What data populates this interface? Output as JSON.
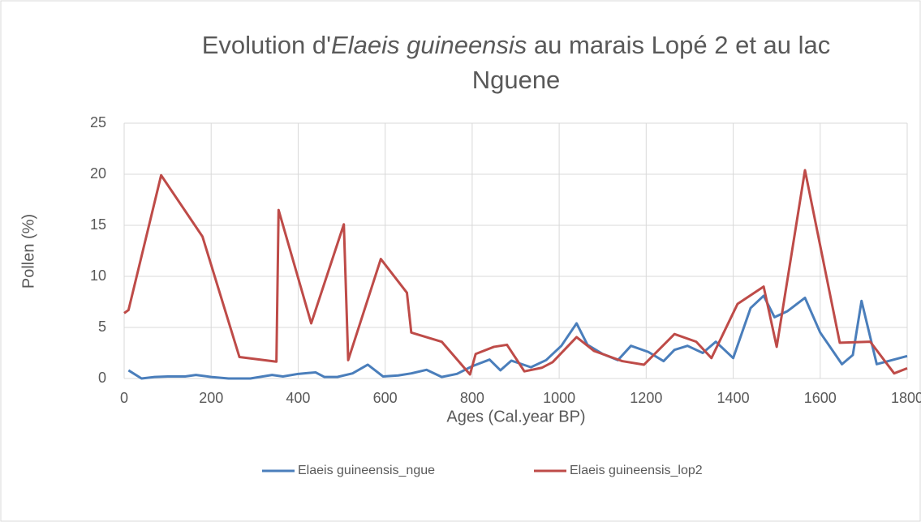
{
  "chart_data": {
    "type": "line",
    "title": [
      "Evolution d'",
      "Elaeis guineensis",
      " au marais Lopé 2 et au lac",
      "Nguene"
    ],
    "x_label": "Ages (Cal.year BP)",
    "y_label": "Pollen (%)",
    "xlim": [
      0,
      1800
    ],
    "xticks": [
      0,
      200,
      400,
      600,
      800,
      1000,
      1200,
      1400,
      1600,
      1800
    ],
    "ylim": [
      0,
      25
    ],
    "yticks": [
      0,
      5,
      10,
      15,
      20,
      25
    ],
    "grid": true,
    "legend": "bottom",
    "series": [
      {
        "name": "Elaeis guineensis_ngue",
        "color": "#4a7ebb",
        "x": [
          10,
          40,
          70,
          100,
          140,
          165,
          200,
          240,
          290,
          340,
          365,
          400,
          440,
          460,
          490,
          525,
          560,
          595,
          630,
          660,
          695,
          730,
          765,
          800,
          840,
          865,
          890,
          935,
          970,
          1005,
          1040,
          1065,
          1100,
          1135,
          1165,
          1205,
          1240,
          1265,
          1295,
          1330,
          1360,
          1400,
          1440,
          1470,
          1495,
          1525,
          1565,
          1600,
          1650,
          1675,
          1695,
          1730,
          1800
        ],
        "values": [
          0.8,
          0,
          0.15,
          0.2,
          0.2,
          0.35,
          0.15,
          0,
          0,
          0.35,
          0.2,
          0.45,
          0.6,
          0.15,
          0.15,
          0.5,
          1.35,
          0.2,
          0.3,
          0.5,
          0.85,
          0.15,
          0.45,
          1.2,
          1.85,
          0.8,
          1.75,
          1.1,
          1.8,
          3.2,
          5.4,
          3.3,
          2.4,
          1.8,
          3.2,
          2.6,
          1.7,
          2.8,
          3.2,
          2.5,
          3.6,
          2.0,
          6.9,
          8.1,
          6.0,
          6.6,
          7.9,
          4.5,
          1.4,
          2.3,
          7.6,
          1.4,
          2.2
        ]
      },
      {
        "name": "Elaeis guineensis_lop2",
        "color": "#be4b48",
        "x": [
          0,
          10,
          85,
          180,
          265,
          350,
          355,
          430,
          505,
          515,
          590,
          650,
          660,
          730,
          795,
          808,
          850,
          880,
          920,
          960,
          985,
          1040,
          1080,
          1145,
          1195,
          1265,
          1315,
          1350,
          1410,
          1470,
          1500,
          1565,
          1645,
          1715,
          1770,
          1800
        ],
        "values": [
          6.4,
          6.7,
          19.9,
          13.9,
          2.1,
          1.65,
          16.5,
          5.4,
          15.1,
          1.8,
          11.7,
          8.4,
          4.5,
          3.6,
          0.4,
          2.4,
          3.1,
          3.3,
          0.7,
          1.05,
          1.6,
          4.05,
          2.7,
          1.7,
          1.35,
          4.35,
          3.6,
          2.0,
          7.3,
          9.0,
          3.1,
          20.4,
          3.5,
          3.6,
          0.5,
          1.0
        ]
      }
    ]
  }
}
